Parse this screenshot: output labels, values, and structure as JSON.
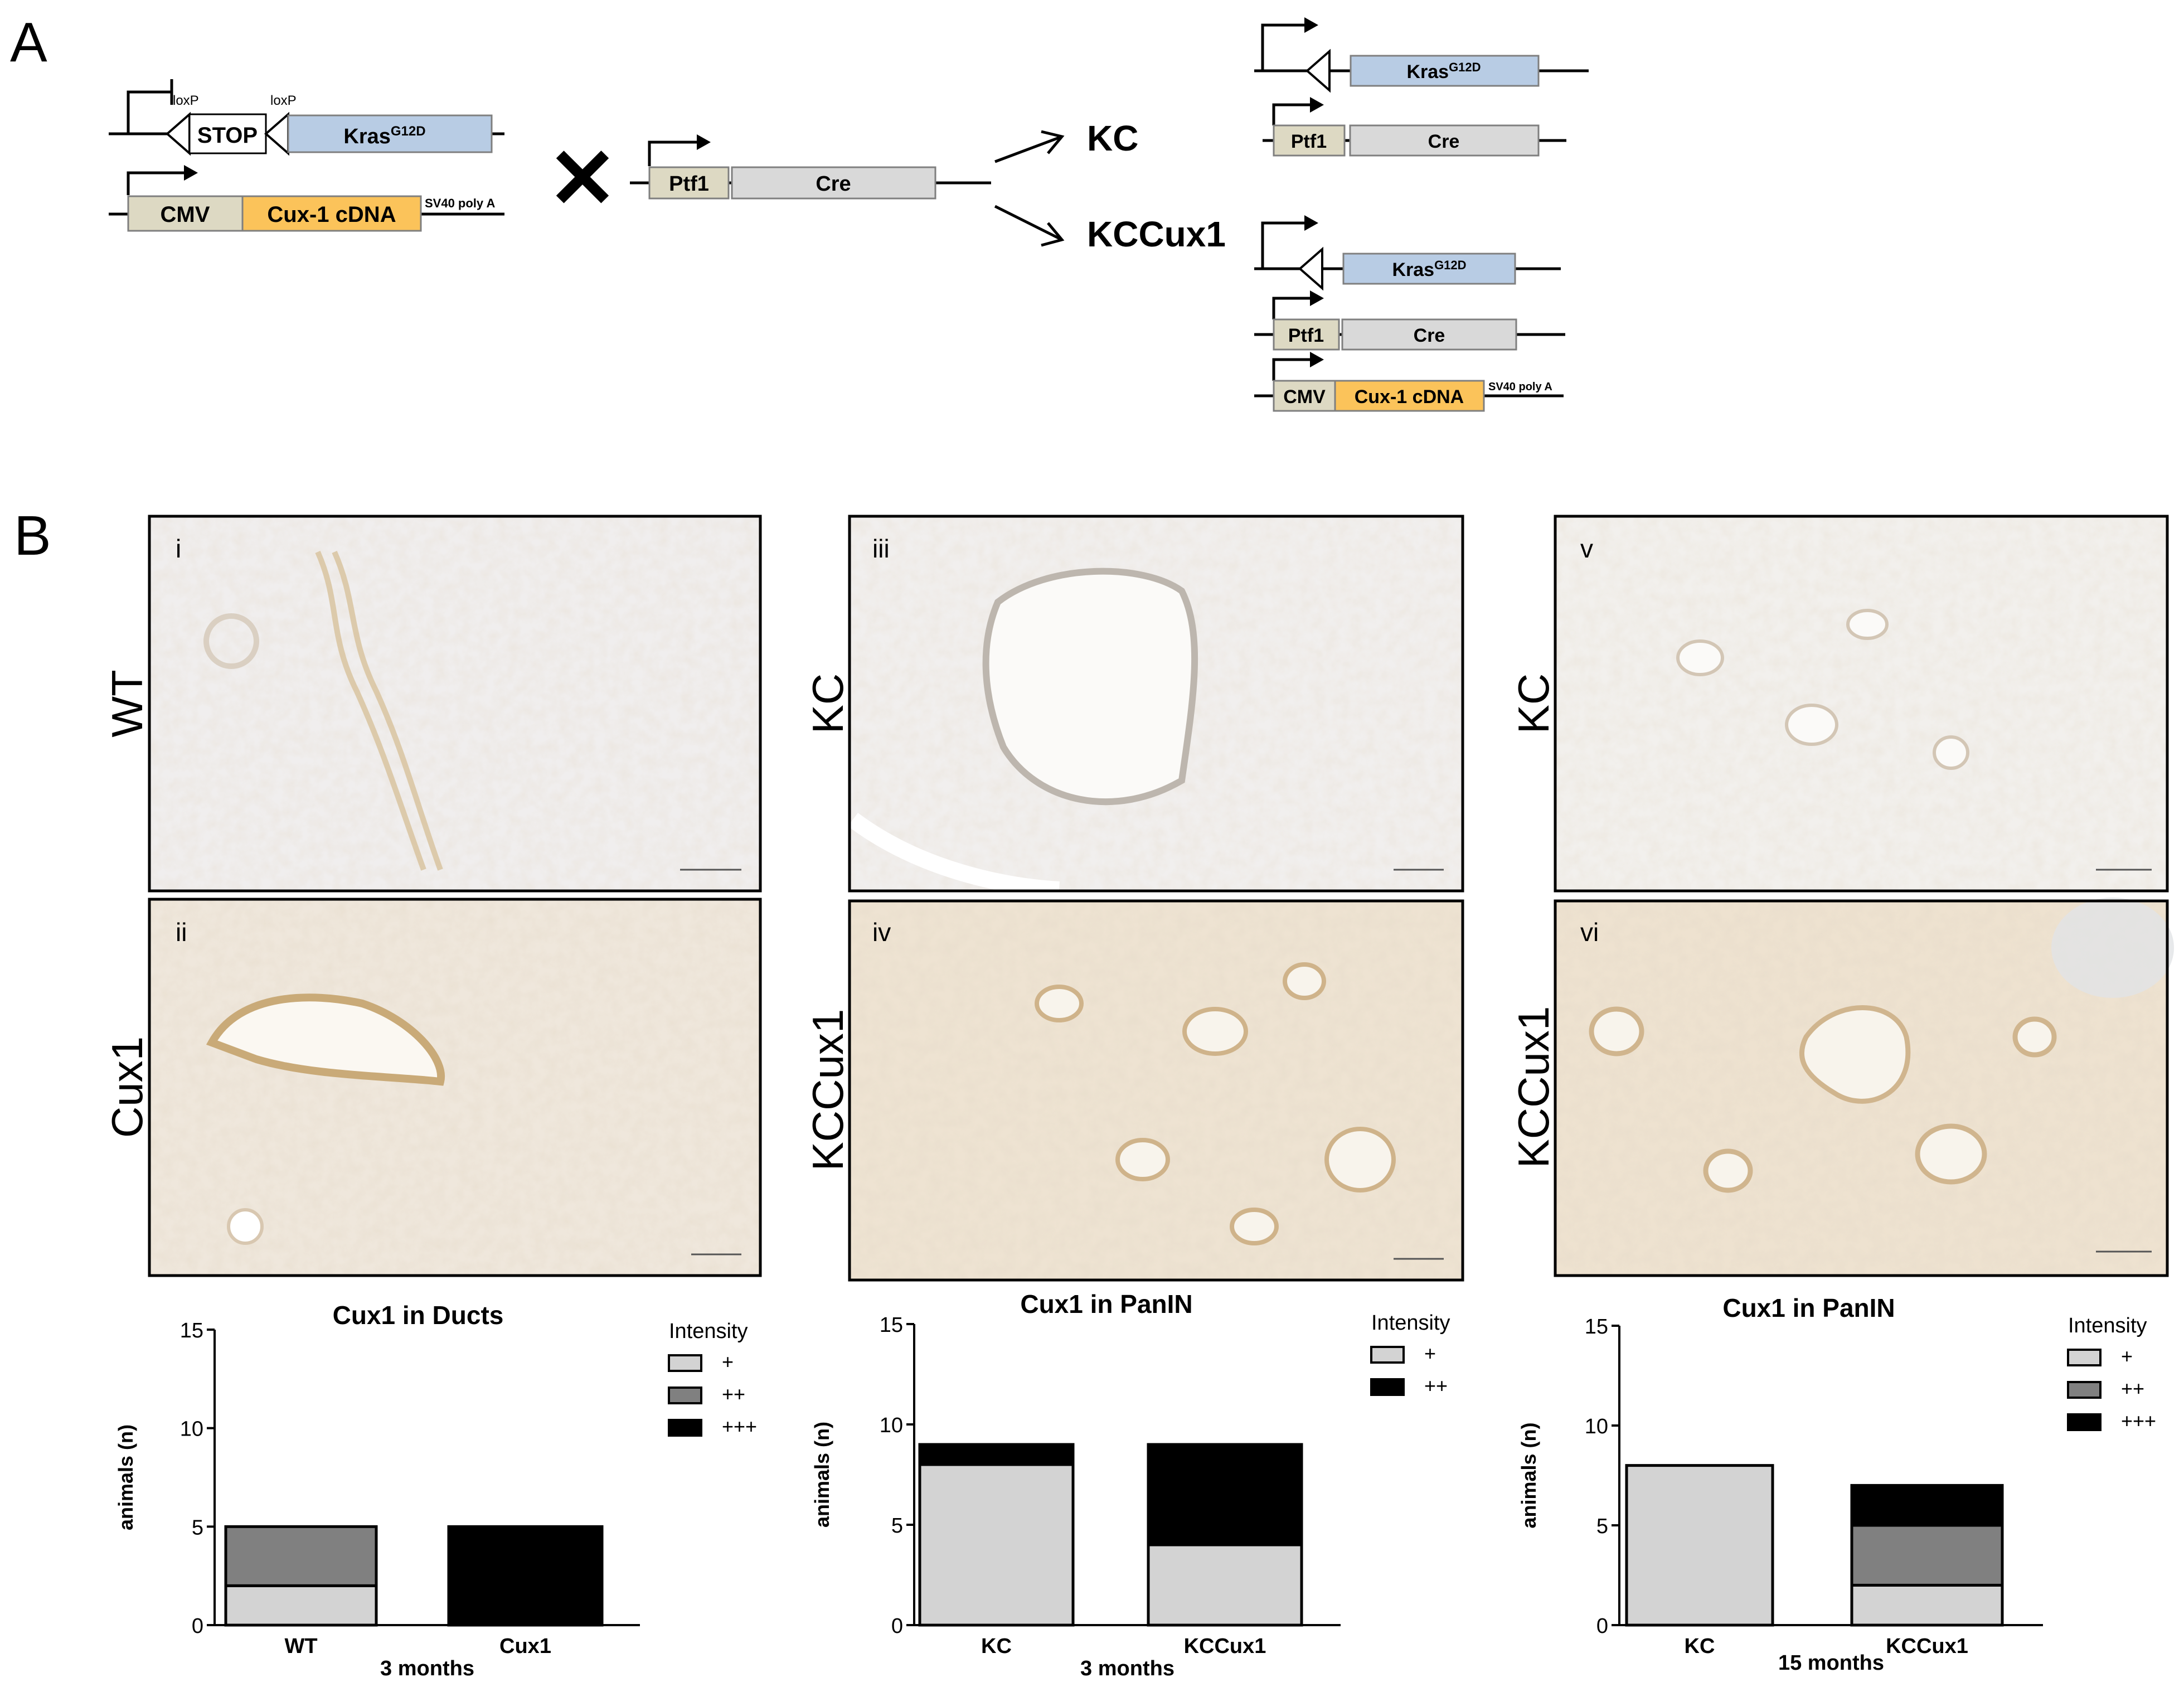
{
  "panel_letters": [
    "A",
    "B"
  ],
  "constructs": {
    "loxp": "loxP",
    "stop": "STOP",
    "kras": "Kras",
    "kras_sup": "G12D",
    "cmv": "CMV",
    "cux_cdna": "Cux-1 cDNA",
    "polya": "SV40 poly A",
    "ptf1": "Ptf1",
    "cre": "Cre",
    "cross": "✕",
    "kc": "KC",
    "kccux1": "KCCux1"
  },
  "colors": {
    "kras_fill": "#b8cce4",
    "cux_fill": "#fbc35a",
    "promoter_fill": "#ddd9c3",
    "gene_fill": "#d9d9d9",
    "intensity_1": "#d3d3d3",
    "intensity_2": "#808080",
    "intensity_3": "#000000"
  },
  "micrographs": [
    {
      "numeral": "i",
      "row_label": "WT",
      "tone": "#f0eeee"
    },
    {
      "numeral": "ii",
      "row_label": "Cux1",
      "tone": "#efe7dc"
    },
    {
      "numeral": "iii",
      "row_label": "KC",
      "tone": "#f1efee"
    },
    {
      "numeral": "iv",
      "row_label": "KCCux1",
      "tone": "#eee3d2"
    },
    {
      "numeral": "v",
      "row_label": "KC",
      "tone": "#f2f0ed"
    },
    {
      "numeral": "vi",
      "row_label": "KCCux1",
      "tone": "#eee2d0"
    }
  ],
  "chart_data": [
    {
      "type": "bar",
      "stacked": true,
      "title": "Cux1 in Ducts",
      "ylabel": "animals (n)",
      "xlabel": "3 months",
      "categories": [
        "WT",
        "Cux1"
      ],
      "ylim": [
        0,
        15
      ],
      "yticks": [
        0,
        5,
        10,
        15
      ],
      "legend_title": "Intensity",
      "series": [
        {
          "name": "+",
          "values": [
            2,
            0
          ]
        },
        {
          "name": "++",
          "values": [
            3,
            0
          ]
        },
        {
          "name": "+++",
          "values": [
            0,
            5
          ]
        }
      ]
    },
    {
      "type": "bar",
      "stacked": true,
      "title": "Cux1 in PanIN",
      "ylabel": "animals (n)",
      "xlabel": "3 months",
      "categories": [
        "KC",
        "KCCux1"
      ],
      "ylim": [
        0,
        15
      ],
      "yticks": [
        0,
        5,
        10,
        15
      ],
      "legend_title": "Intensity",
      "series": [
        {
          "name": "+",
          "values": [
            8,
            4
          ]
        },
        {
          "name": "++",
          "values": [
            1,
            5
          ]
        }
      ]
    },
    {
      "type": "bar",
      "stacked": true,
      "title": "Cux1 in PanIN",
      "ylabel": "animals (n)",
      "xlabel": "15 months",
      "categories": [
        "KC",
        "KCCux1"
      ],
      "ylim": [
        0,
        15
      ],
      "yticks": [
        0,
        5,
        10,
        15
      ],
      "legend_title": "Intensity",
      "series": [
        {
          "name": "+",
          "values": [
            8,
            2
          ]
        },
        {
          "name": "++",
          "values": [
            0,
            3
          ]
        },
        {
          "name": "+++",
          "values": [
            0,
            2
          ]
        }
      ]
    }
  ]
}
